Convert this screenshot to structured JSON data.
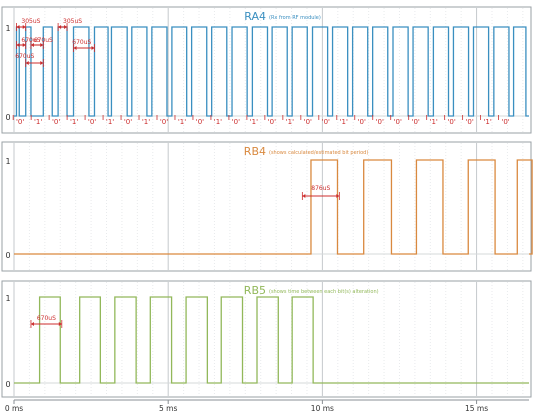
{
  "chart_data": {
    "type": "line",
    "x_unit": "ms",
    "xlim": [
      0,
      16.7
    ],
    "x_ticks": [
      {
        "value": 0,
        "label": "0 ms"
      },
      {
        "value": 5,
        "label": "5 ms"
      },
      {
        "value": 10,
        "label": "10 ms"
      },
      {
        "value": 15,
        "label": "15 ms"
      }
    ],
    "y_ticks": [
      0,
      1
    ],
    "grid": true,
    "panels": [
      {
        "key": "RA4",
        "title": "RA4",
        "subtitle": "(Rx from RF module)",
        "color": "#3a8fc0",
        "ylim": [
          0,
          1
        ],
        "pulses": [
          [
            0.08,
            0.17
          ],
          [
            0.38,
            0.55
          ],
          [
            0.95,
            1.24
          ],
          [
            1.43,
            1.72
          ],
          [
            1.93,
            2.43
          ],
          [
            2.61,
            3.05
          ],
          [
            3.16,
            3.67
          ],
          [
            3.82,
            4.31
          ],
          [
            4.47,
            4.96
          ],
          [
            5.12,
            5.6
          ],
          [
            5.76,
            6.25
          ],
          [
            6.41,
            6.9
          ],
          [
            7.07,
            7.56
          ],
          [
            7.73,
            8.22
          ],
          [
            8.37,
            8.86
          ],
          [
            9.02,
            9.51
          ],
          [
            9.68,
            10.17
          ],
          [
            10.33,
            10.82
          ],
          [
            10.98,
            11.47
          ],
          [
            11.63,
            12.12
          ],
          [
            12.29,
            12.78
          ],
          [
            12.94,
            13.43
          ],
          [
            13.6,
            14.09
          ],
          [
            14.25,
            14.74
          ],
          [
            14.9,
            15.39
          ],
          [
            15.56,
            16.05
          ],
          [
            16.2,
            16.6
          ]
        ],
        "bits": [
          "'0'",
          "'1'",
          "'0'",
          "'1'",
          "'0'",
          "'1'",
          "'0'",
          "'1'",
          "'0'",
          "'1'",
          "'0'",
          "'1'",
          "'0'",
          "'1'",
          "'0'",
          "'1'",
          "'0'",
          "'0'",
          "'1'",
          "'0'",
          "'0'",
          "'0'",
          "'0'",
          "'1'",
          "'0'",
          "'0'",
          "'1'",
          "'0'"
        ],
        "annotations": [
          "305uS",
          "305uS",
          "670uS",
          "670uS",
          "670uS",
          "670uS"
        ]
      },
      {
        "key": "RB4",
        "title": "RB4",
        "subtitle": "(shows calculated/estimated bit period)",
        "color": "#d9893f",
        "ylim": [
          0,
          1
        ],
        "pulses": [
          [
            9.63,
            10.49
          ],
          [
            11.34,
            12.24
          ],
          [
            13.05,
            13.91
          ],
          [
            14.73,
            15.6
          ],
          [
            16.32,
            16.8
          ]
        ],
        "annotations": [
          "876uS"
        ]
      },
      {
        "key": "RB5",
        "title": "RB5",
        "subtitle": "(shows time between each bit(s) alteration)",
        "color": "#92b85a",
        "ylim": [
          0,
          1
        ],
        "pulses": [
          [
            0.83,
            1.5
          ],
          [
            2.13,
            2.8
          ],
          [
            3.27,
            3.96
          ],
          [
            4.42,
            5.11
          ],
          [
            5.58,
            6.27
          ],
          [
            6.72,
            7.41
          ],
          [
            7.88,
            8.57
          ],
          [
            9.02,
            9.7
          ]
        ],
        "annotations": [
          "670uS"
        ]
      }
    ]
  }
}
